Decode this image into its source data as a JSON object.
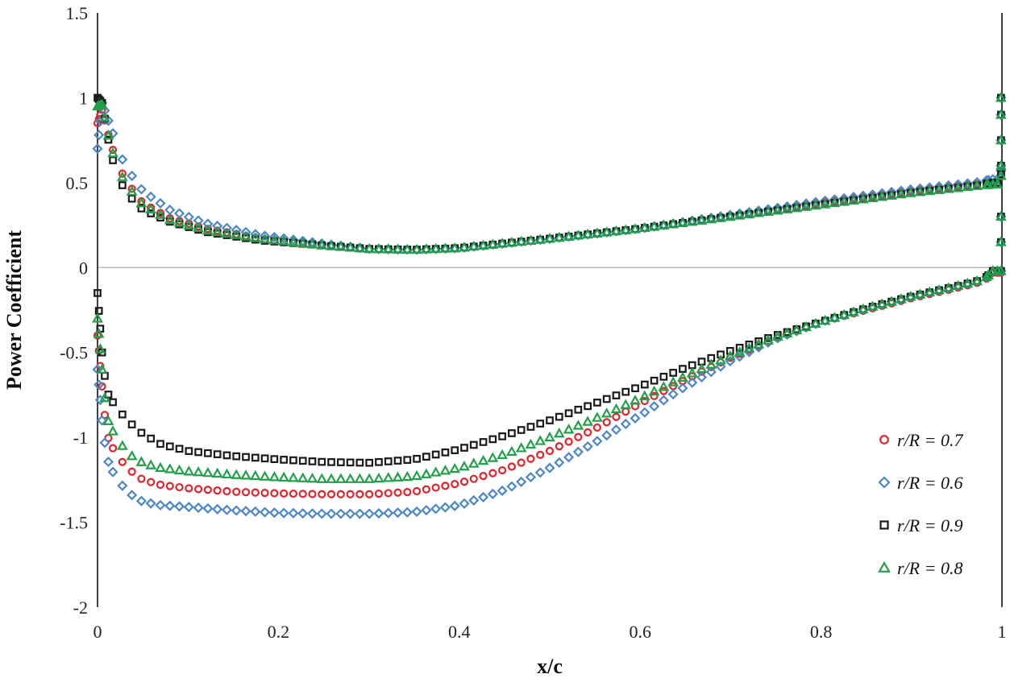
{
  "chart_data": {
    "type": "scatter",
    "title": "",
    "xlabel": "x/c",
    "ylabel": "Power Coefficient",
    "xlim": [
      0,
      1
    ],
    "ylim": [
      -2,
      1.5
    ],
    "x_ticks": [
      "0",
      "0.2",
      "0.4",
      "0.6",
      "0.8",
      "1"
    ],
    "y_ticks": [
      "1.5",
      "1",
      "0.5",
      "0",
      "-0.5",
      "-1",
      "-1.5",
      "-2"
    ],
    "zero_line": true,
    "legend_position": "bottom-right",
    "series": [
      {
        "name": "r/R = 0.7",
        "marker": "circle",
        "color": "#e2232a",
        "upper": {
          "x": [
            0.0,
            0.005,
            0.015,
            0.03,
            0.05,
            0.08,
            0.12,
            0.18,
            0.25,
            0.3,
            0.35,
            0.4,
            0.5,
            0.6,
            0.7,
            0.8,
            0.9,
            0.97,
            0.99
          ],
          "y": [
            0.85,
            0.93,
            0.72,
            0.52,
            0.38,
            0.29,
            0.23,
            0.17,
            0.13,
            0.11,
            0.105,
            0.115,
            0.17,
            0.23,
            0.3,
            0.38,
            0.45,
            0.49,
            0.5
          ]
        },
        "lower": {
          "x": [
            0.0,
            0.005,
            0.01,
            0.02,
            0.035,
            0.05,
            0.07,
            0.1,
            0.15,
            0.2,
            0.25,
            0.3,
            0.35,
            0.4,
            0.45,
            0.5,
            0.55,
            0.6,
            0.65,
            0.7,
            0.75,
            0.8,
            0.85,
            0.9,
            0.95,
            0.98,
            0.99
          ],
          "y": [
            -0.4,
            -0.7,
            -0.98,
            -1.1,
            -1.19,
            -1.25,
            -1.28,
            -1.3,
            -1.32,
            -1.33,
            -1.335,
            -1.335,
            -1.32,
            -1.27,
            -1.19,
            -1.08,
            -0.95,
            -0.8,
            -0.66,
            -0.53,
            -0.42,
            -0.32,
            -0.25,
            -0.18,
            -0.12,
            -0.08,
            -0.03
          ]
        }
      },
      {
        "name": "r/R = 0.6",
        "marker": "diamond",
        "color": "#4a86c8",
        "upper": {
          "x": [
            0.0,
            0.005,
            0.015,
            0.03,
            0.05,
            0.08,
            0.12,
            0.18,
            0.25,
            0.3,
            0.35,
            0.4,
            0.5,
            0.6,
            0.7,
            0.8,
            0.9,
            0.97,
            0.99
          ],
          "y": [
            0.7,
            0.97,
            0.82,
            0.6,
            0.45,
            0.34,
            0.26,
            0.19,
            0.14,
            0.11,
            0.105,
            0.115,
            0.17,
            0.23,
            0.31,
            0.39,
            0.46,
            0.5,
            0.52
          ]
        },
        "lower": {
          "x": [
            0.0,
            0.005,
            0.01,
            0.02,
            0.035,
            0.05,
            0.07,
            0.1,
            0.15,
            0.2,
            0.25,
            0.3,
            0.35,
            0.4,
            0.45,
            0.5,
            0.55,
            0.6,
            0.65,
            0.7,
            0.75,
            0.8,
            0.85,
            0.9,
            0.95,
            0.98,
            0.99
          ],
          "y": [
            -0.6,
            -0.9,
            -1.12,
            -1.24,
            -1.33,
            -1.38,
            -1.4,
            -1.41,
            -1.43,
            -1.445,
            -1.45,
            -1.45,
            -1.44,
            -1.4,
            -1.31,
            -1.18,
            -1.03,
            -0.87,
            -0.7,
            -0.55,
            -0.42,
            -0.32,
            -0.24,
            -0.17,
            -0.11,
            -0.07,
            -0.02
          ]
        }
      },
      {
        "name": "r/R = 0.9",
        "marker": "square",
        "color": "#1a1a1a",
        "upper": {
          "x": [
            0.0,
            0.005,
            0.015,
            0.03,
            0.05,
            0.08,
            0.12,
            0.18,
            0.25,
            0.3,
            0.35,
            0.4,
            0.5,
            0.6,
            0.7,
            0.8,
            0.9,
            0.97,
            0.99
          ],
          "y": [
            1.0,
            0.97,
            0.66,
            0.45,
            0.34,
            0.27,
            0.21,
            0.16,
            0.13,
            0.11,
            0.105,
            0.115,
            0.17,
            0.23,
            0.3,
            0.37,
            0.44,
            0.48,
            0.5
          ]
        },
        "lower": {
          "x": [
            0.0,
            0.005,
            0.01,
            0.02,
            0.035,
            0.05,
            0.07,
            0.1,
            0.15,
            0.2,
            0.25,
            0.3,
            0.35,
            0.4,
            0.45,
            0.5,
            0.55,
            0.6,
            0.65,
            0.7,
            0.75,
            0.8,
            0.85,
            0.9,
            0.95,
            0.98,
            0.99
          ],
          "y": [
            -0.15,
            -0.5,
            -0.73,
            -0.82,
            -0.91,
            -0.98,
            -1.04,
            -1.08,
            -1.11,
            -1.13,
            -1.145,
            -1.15,
            -1.13,
            -1.07,
            -0.99,
            -0.9,
            -0.8,
            -0.7,
            -0.59,
            -0.49,
            -0.4,
            -0.32,
            -0.24,
            -0.17,
            -0.11,
            -0.07,
            -0.02
          ]
        }
      },
      {
        "name": "r/R = 0.8",
        "marker": "triangle",
        "color": "#21a04a",
        "upper": {
          "x": [
            0.0,
            0.005,
            0.015,
            0.03,
            0.05,
            0.08,
            0.12,
            0.18,
            0.25,
            0.3,
            0.35,
            0.4,
            0.5,
            0.6,
            0.7,
            0.8,
            0.9,
            0.97,
            0.99
          ],
          "y": [
            0.95,
            0.96,
            0.7,
            0.5,
            0.37,
            0.28,
            0.22,
            0.17,
            0.13,
            0.11,
            0.105,
            0.115,
            0.17,
            0.23,
            0.3,
            0.37,
            0.44,
            0.48,
            0.49
          ]
        },
        "lower": {
          "x": [
            0.0,
            0.005,
            0.01,
            0.02,
            0.035,
            0.05,
            0.07,
            0.1,
            0.15,
            0.2,
            0.25,
            0.3,
            0.35,
            0.4,
            0.45,
            0.5,
            0.55,
            0.6,
            0.65,
            0.7,
            0.75,
            0.8,
            0.85,
            0.9,
            0.95,
            0.98,
            0.99
          ],
          "y": [
            -0.3,
            -0.6,
            -0.88,
            -1.0,
            -1.1,
            -1.15,
            -1.18,
            -1.2,
            -1.22,
            -1.235,
            -1.245,
            -1.245,
            -1.23,
            -1.18,
            -1.1,
            -1.0,
            -0.89,
            -0.77,
            -0.64,
            -0.52,
            -0.41,
            -0.32,
            -0.24,
            -0.17,
            -0.11,
            -0.07,
            -0.02
          ]
        }
      }
    ]
  }
}
